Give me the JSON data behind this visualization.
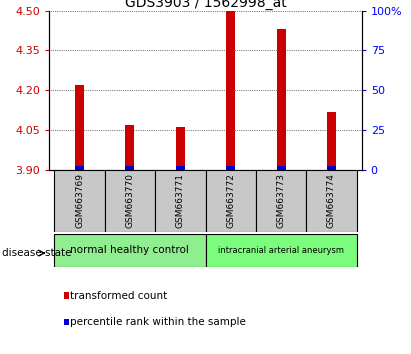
{
  "title": "GDS3903 / 1562998_at",
  "samples": [
    "GSM663769",
    "GSM663770",
    "GSM663771",
    "GSM663772",
    "GSM663773",
    "GSM663774"
  ],
  "red_values": [
    4.22,
    4.07,
    4.06,
    4.5,
    4.43,
    4.12
  ],
  "y_min": 3.9,
  "y_max": 4.5,
  "y_ticks_left": [
    3.9,
    4.05,
    4.2,
    4.35,
    4.5
  ],
  "y_ticks_right": [
    0,
    25,
    50,
    75,
    100
  ],
  "groups": [
    {
      "label": "normal healthy control",
      "indices": [
        0,
        1,
        2
      ],
      "color": "#90EE90"
    },
    {
      "label": "intracranial arterial aneurysm",
      "indices": [
        3,
        4,
        5
      ],
      "color": "#7CFC7C"
    }
  ],
  "disease_state_label": "disease state",
  "legend": [
    {
      "color": "#CC0000",
      "label": "transformed count"
    },
    {
      "color": "#0000CC",
      "label": "percentile rank within the sample"
    }
  ],
  "bar_width": 0.18,
  "red_color": "#CC0000",
  "blue_color": "#0000CC",
  "tick_bg_color": "#C8C8C8",
  "title_fontsize": 10
}
